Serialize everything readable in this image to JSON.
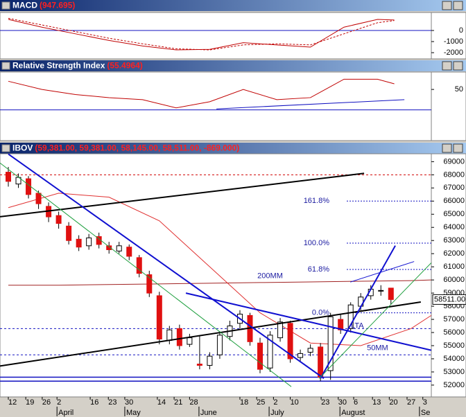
{
  "panes": [
    {
      "title": "MACD",
      "header_value": "(947.695)",
      "ylim": [
        -2560,
        1625
      ],
      "yticks": [
        0,
        -1000,
        -2000
      ],
      "hlines": [
        0
      ],
      "x": [
        0,
        10,
        20,
        30,
        40,
        50,
        60,
        70,
        80,
        90,
        100,
        110,
        115
      ],
      "series": [
        {
          "name": "MACD",
          "color": "#c00000",
          "dashed": false,
          "values": [
            1000,
            300,
            -300,
            -900,
            -1400,
            -1750,
            -1700,
            -1100,
            -1300,
            -1500,
            300,
            1000,
            947.695
          ]
        },
        {
          "name": "Signal",
          "color": "#c00000",
          "dashed": true,
          "values": [
            1100,
            500,
            -100,
            -700,
            -1200,
            -1650,
            -1750,
            -1300,
            -1200,
            -1300,
            -300,
            700,
            900
          ]
        }
      ]
    },
    {
      "title": "Relative Strength Index",
      "header_value": "(55.4964)",
      "ylim": [
        0,
        67
      ],
      "yticks": [
        50
      ],
      "hlines": [
        30
      ],
      "x": [
        0,
        10,
        20,
        30,
        40,
        50,
        60,
        70,
        80,
        90,
        100,
        110,
        115
      ],
      "series": [
        {
          "name": "RSI",
          "color": "#c00000",
          "dashed": false,
          "values": [
            58,
            50,
            45,
            42,
            40,
            32,
            38,
            50,
            40,
            42,
            60,
            60,
            55.4964
          ]
        }
      ],
      "trendlines": [
        {
          "color": "#1010c0",
          "points": [
            [
              62,
              31
            ],
            [
              118,
              40
            ]
          ]
        }
      ]
    }
  ],
  "chart_data": {
    "type": "candlestick",
    "title": "IBOV",
    "header_value": "(59,381.00, 59,381.00, 58,145.00, 58,511.00, -869.000)",
    "last_label": "58511.00",
    "last_value": 58511,
    "xlim": [
      -2.48,
      126.03
    ],
    "ylim": [
      51100,
      69600
    ],
    "yticks": [
      52000,
      53000,
      54000,
      55000,
      56000,
      57000,
      58000,
      59000,
      60000,
      61000,
      62000,
      63000,
      64000,
      65000,
      66000,
      67000,
      68000,
      69000
    ],
    "xticks": [
      {
        "value": 0,
        "label": "12"
      },
      {
        "value": 5.2,
        "label": "19"
      },
      {
        "value": 10.1,
        "label": "26"
      },
      {
        "value": 14.5,
        "label": "2"
      },
      {
        "value": 24.4,
        "label": "16"
      },
      {
        "value": 29.8,
        "label": "23"
      },
      {
        "value": 34.7,
        "label": "30"
      },
      {
        "value": 44.4,
        "label": "14"
      },
      {
        "value": 49.4,
        "label": "21"
      },
      {
        "value": 54,
        "label": "28"
      },
      {
        "value": 69,
        "label": "18"
      },
      {
        "value": 74,
        "label": "25"
      },
      {
        "value": 79,
        "label": "2"
      },
      {
        "value": 84,
        "label": "10"
      },
      {
        "value": 93.2,
        "label": "23"
      },
      {
        "value": 98.3,
        "label": "30"
      },
      {
        "value": 102.9,
        "label": "6"
      },
      {
        "value": 108.5,
        "label": "13"
      },
      {
        "value": 113.5,
        "label": "20"
      },
      {
        "value": 118.8,
        "label": "27"
      },
      {
        "value": 123.5,
        "label": "3"
      }
    ],
    "months": [
      {
        "value": 14.5,
        "label": "April"
      },
      {
        "value": 34.7,
        "label": "May"
      },
      {
        "value": 56.8,
        "label": "June"
      },
      {
        "value": 77.7,
        "label": "July"
      },
      {
        "value": 98.8,
        "label": "August"
      },
      {
        "value": 122.5,
        "label": "Se"
      }
    ],
    "x": [
      0,
      3,
      6,
      9,
      12,
      15,
      18,
      21,
      24,
      27,
      30,
      33,
      36,
      39,
      42,
      45,
      48,
      51,
      54,
      57,
      60,
      63,
      66,
      69,
      72,
      75,
      78,
      81,
      84,
      87,
      90,
      93,
      96,
      99,
      102,
      105,
      108,
      111,
      114
    ],
    "open": [
      68200,
      67300,
      67700,
      66600,
      65600,
      64900,
      64100,
      63100,
      62600,
      63300,
      62600,
      62200,
      62500,
      61700,
      60400,
      58800,
      55400,
      56300,
      55100,
      53600,
      53500,
      54300,
      55700,
      56700,
      57300,
      55200,
      53300,
      55600,
      56700,
      54100,
      54500,
      54900,
      53100,
      57000,
      56300,
      58000,
      58800,
      59200,
      59381
    ],
    "high": [
      68600,
      68100,
      67900,
      66800,
      65900,
      65200,
      64400,
      63400,
      63500,
      63600,
      62900,
      62900,
      62700,
      61900,
      60700,
      59100,
      56500,
      56600,
      55900,
      55800,
      54500,
      56100,
      56900,
      57700,
      57500,
      55600,
      56100,
      57100,
      56900,
      54700,
      55100,
      55200,
      57500,
      57400,
      58300,
      59000,
      59600,
      59600,
      59381
    ],
    "low": [
      67100,
      67000,
      66200,
      65400,
      64400,
      63900,
      62700,
      62200,
      62300,
      62400,
      62000,
      62000,
      61500,
      60200,
      58700,
      55100,
      55100,
      54700,
      54900,
      53200,
      53200,
      54000,
      55400,
      56300,
      55000,
      52900,
      53000,
      55300,
      53700,
      53800,
      54200,
      52300,
      52400,
      55900,
      56000,
      57700,
      58500,
      58800,
      58145
    ],
    "close": [
      67500,
      67800,
      66500,
      65800,
      64800,
      64300,
      63000,
      62500,
      63200,
      62700,
      62300,
      62600,
      61800,
      60500,
      59000,
      55500,
      56200,
      55000,
      55600,
      53500,
      54200,
      55800,
      56500,
      57400,
      55300,
      53200,
      55800,
      56800,
      54000,
      54400,
      54800,
      52600,
      57200,
      56200,
      58100,
      58700,
      59300,
      59200,
      58511
    ],
    "up_color": "#ffffff",
    "down_color": "#e01010",
    "ma_x": [
      0,
      15,
      30,
      45,
      60,
      75,
      90,
      105,
      120,
      126
    ],
    "moving_averages": [
      {
        "name": "200MM",
        "color": "#a02020",
        "values": [
          59600,
          59600,
          59650,
          59700,
          59750,
          59800,
          59850,
          59900,
          59950,
          60000
        ]
      },
      {
        "name": "50MM",
        "color": "#e03030",
        "values": [
          65500,
          66600,
          66300,
          64500,
          61000,
          57500,
          55200,
          55000,
          56300,
          57300
        ]
      }
    ],
    "annotations": [
      {
        "text": "200MM",
        "x": 78,
        "y": 60300
      },
      {
        "text": "50MM",
        "x": 110,
        "y": 54800
      },
      {
        "text": "LTA",
        "x": 104,
        "y": 56500
      }
    ],
    "fib_levels": [
      {
        "label": "161.8%",
        "value": 66000
      },
      {
        "label": "100.0%",
        "value": 62800
      },
      {
        "label": "61.8%",
        "value": 60800
      },
      {
        "label": "0.0%",
        "value": 57500
      }
    ],
    "ref_lines": [
      {
        "value": 68000,
        "color": "#d00000",
        "dashed": true
      },
      {
        "value": 56300,
        "color": "#1010c0",
        "dashed": true
      },
      {
        "value": 54300,
        "color": "#1010c0",
        "dashed": true
      },
      {
        "value": 52600,
        "color": "#1010c0",
        "dashed": false
      },
      {
        "value": 52300,
        "color": "#1010c0",
        "dashed": false
      }
    ],
    "trendlines": [
      {
        "color": "#000000",
        "width": 2,
        "points": [
          [
            -2.48,
            64810
          ],
          [
            106,
            68110
          ]
        ]
      },
      {
        "color": "#000000",
        "width": 2,
        "points": [
          [
            -2.48,
            53450
          ],
          [
            122.9,
            58320
          ]
        ]
      },
      {
        "color": "#1010d0",
        "width": 2,
        "points": [
          [
            0,
            69580
          ],
          [
            94,
            52510
          ]
        ]
      },
      {
        "color": "#1010d0",
        "width": 2,
        "points": [
          [
            52.9,
            59000
          ],
          [
            126,
            54650
          ]
        ]
      },
      {
        "color": "#1010d0",
        "width": 2,
        "points": [
          [
            93,
            52510
          ],
          [
            115.3,
            62610
          ]
        ]
      },
      {
        "color": "#1010d0",
        "width": 1,
        "points": [
          [
            101.9,
            59840
          ],
          [
            120.9,
            61400
          ]
        ]
      },
      {
        "color": "#20a040",
        "width": 1,
        "points": [
          [
            -2.48,
            68900
          ],
          [
            84.3,
            51880
          ]
        ]
      },
      {
        "color": "#20a040",
        "width": 1,
        "points": [
          [
            92.6,
            52510
          ],
          [
            126,
            61300
          ]
        ]
      }
    ]
  }
}
